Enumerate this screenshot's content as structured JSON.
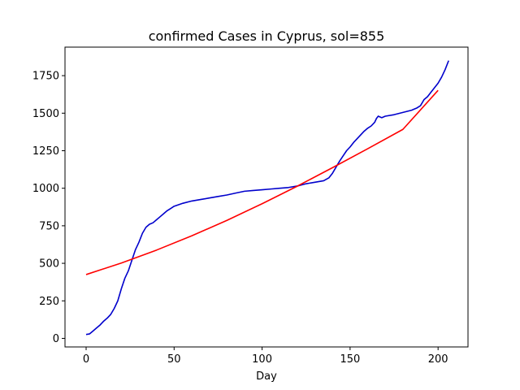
{
  "chart_data": {
    "type": "line",
    "title": "confirmed Cases in Cyprus, sol=855",
    "xlabel": "Day",
    "ylabel": "",
    "xlim": [
      -12,
      217
    ],
    "ylim": [
      -57,
      1940
    ],
    "xticks": [
      0,
      50,
      100,
      150,
      200
    ],
    "yticks": [
      0,
      250,
      500,
      750,
      1000,
      1250,
      1500,
      1750
    ],
    "grid": false,
    "series": [
      {
        "color": "#0000cc",
        "x": [
          0,
          2,
          4,
          6,
          8,
          10,
          12,
          14,
          16,
          18,
          20,
          22,
          24,
          26,
          28,
          30,
          32,
          34,
          36,
          38,
          40,
          42,
          44,
          46,
          48,
          50,
          55,
          60,
          65,
          70,
          75,
          80,
          85,
          90,
          95,
          100,
          105,
          110,
          115,
          120,
          125,
          130,
          135,
          138,
          140,
          142,
          144,
          146,
          148,
          150,
          152,
          154,
          156,
          158,
          160,
          162,
          164,
          165,
          166,
          168,
          170,
          175,
          180,
          185,
          188,
          190,
          192,
          194,
          196,
          198,
          200,
          202,
          204,
          206
        ],
        "y": [
          26,
          30,
          50,
          70,
          90,
          115,
          135,
          160,
          200,
          250,
          330,
          400,
          450,
          520,
          590,
          640,
          700,
          740,
          760,
          770,
          790,
          810,
          830,
          850,
          865,
          880,
          900,
          915,
          925,
          935,
          945,
          955,
          968,
          980,
          985,
          990,
          995,
          1000,
          1005,
          1015,
          1030,
          1040,
          1050,
          1070,
          1100,
          1140,
          1180,
          1215,
          1250,
          1275,
          1305,
          1330,
          1355,
          1380,
          1400,
          1415,
          1440,
          1465,
          1480,
          1470,
          1480,
          1490,
          1505,
          1520,
          1535,
          1550,
          1590,
          1610,
          1640,
          1670,
          1700,
          1740,
          1790,
          1850
        ]
      },
      {
        "color": "#ff0000",
        "x": [
          0,
          20,
          40,
          60,
          80,
          100,
          120,
          140,
          160,
          180,
          200
        ],
        "y": [
          425,
          502,
          588,
          683,
          786,
          897,
          1014,
          1137,
          1263,
          1392,
          1652
        ]
      }
    ]
  }
}
